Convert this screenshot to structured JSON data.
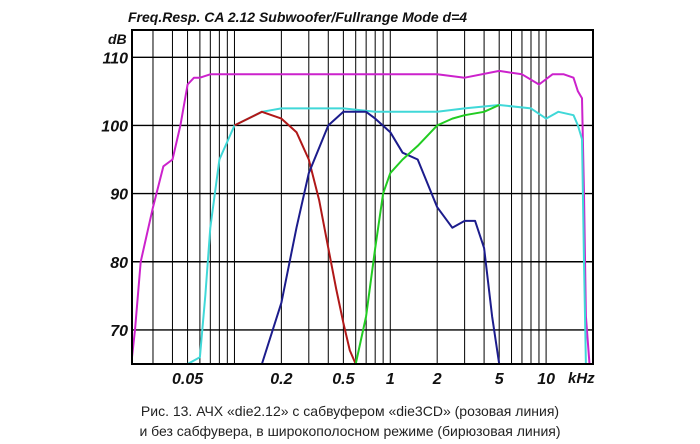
{
  "chart_data": {
    "type": "line",
    "title": "Freq.Resp.  CA  2.12 Subwoofer/Fullrange Mode d=4",
    "ylabel": "dB",
    "xlabel": "kHz",
    "x_scale": "log",
    "xlim": [
      0.022,
      20
    ],
    "ylim": [
      65,
      114
    ],
    "y_ticks": [
      110,
      100,
      90,
      80,
      70
    ],
    "y_tick_labels": [
      "110",
      "100",
      "90",
      "80",
      "70"
    ],
    "x_ticks": [
      0.05,
      0.2,
      0.5,
      1,
      2,
      5,
      10
    ],
    "x_tick_labels": [
      "0.05",
      "0.2",
      "0.5",
      "1",
      "2",
      "5",
      "10"
    ],
    "grid": true,
    "series": [
      {
        "color": "#cc22cc",
        "x": [
          0.022,
          0.023,
          0.025,
          0.03,
          0.035,
          0.04,
          0.045,
          0.05,
          0.055,
          0.06,
          0.07,
          0.1,
          0.2,
          0.5,
          1,
          2,
          3,
          5,
          7,
          9,
          11,
          13,
          15,
          16,
          17,
          17.5,
          18,
          19
        ],
        "y": [
          66,
          70,
          80,
          88,
          94,
          95,
          100,
          106,
          107,
          107,
          107.5,
          107.5,
          107.5,
          107.5,
          107.5,
          107.5,
          107,
          108,
          107.5,
          106,
          107.5,
          107.5,
          107,
          105,
          104,
          90,
          72,
          65
        ]
      },
      {
        "color": "#40d8d8",
        "x": [
          0.022,
          0.05,
          0.06,
          0.065,
          0.07,
          0.08,
          0.1,
          0.15,
          0.2,
          0.3,
          0.5,
          0.8,
          1,
          2,
          3,
          5,
          8,
          10,
          12,
          15,
          16,
          17,
          17.5,
          18
        ],
        "y": [
          65,
          65,
          66,
          75,
          85,
          95,
          100,
          102,
          102.5,
          102.5,
          102.5,
          102,
          102,
          102,
          102.5,
          103,
          102.5,
          101,
          102,
          101.5,
          100,
          98,
          80,
          65
        ]
      },
      {
        "color": "#b01818",
        "x": [
          0.1,
          0.15,
          0.2,
          0.25,
          0.3,
          0.35,
          0.4,
          0.45,
          0.5,
          0.55,
          0.6
        ],
        "y": [
          100,
          102,
          101,
          99,
          95,
          89,
          82,
          76,
          71,
          67,
          65
        ]
      },
      {
        "color": "#1c1c8c",
        "x": [
          0.15,
          0.2,
          0.25,
          0.3,
          0.4,
          0.5,
          0.7,
          0.8,
          1,
          1.2,
          1.5,
          2,
          2.5,
          3,
          3.5,
          4,
          4.5,
          5
        ],
        "y": [
          65,
          74,
          85,
          93,
          100,
          102,
          102,
          101,
          99,
          96,
          95,
          88,
          85,
          86,
          86,
          82,
          72,
          65
        ]
      },
      {
        "color": "#22cc22",
        "x": [
          0.6,
          0.7,
          0.8,
          0.9,
          1,
          1.2,
          1.5,
          2,
          2.5,
          3,
          4,
          5
        ],
        "y": [
          65,
          72,
          82,
          90,
          93,
          95,
          97,
          100,
          101,
          101.5,
          102,
          103
        ]
      }
    ]
  },
  "caption": {
    "line1": "Рис. 13. АЧХ «die2.12» с сабвуфером «die3CD» (розовая линия)",
    "line2": "и без сабфувера, в широкополосном режиме (бирюзовая линия)"
  }
}
